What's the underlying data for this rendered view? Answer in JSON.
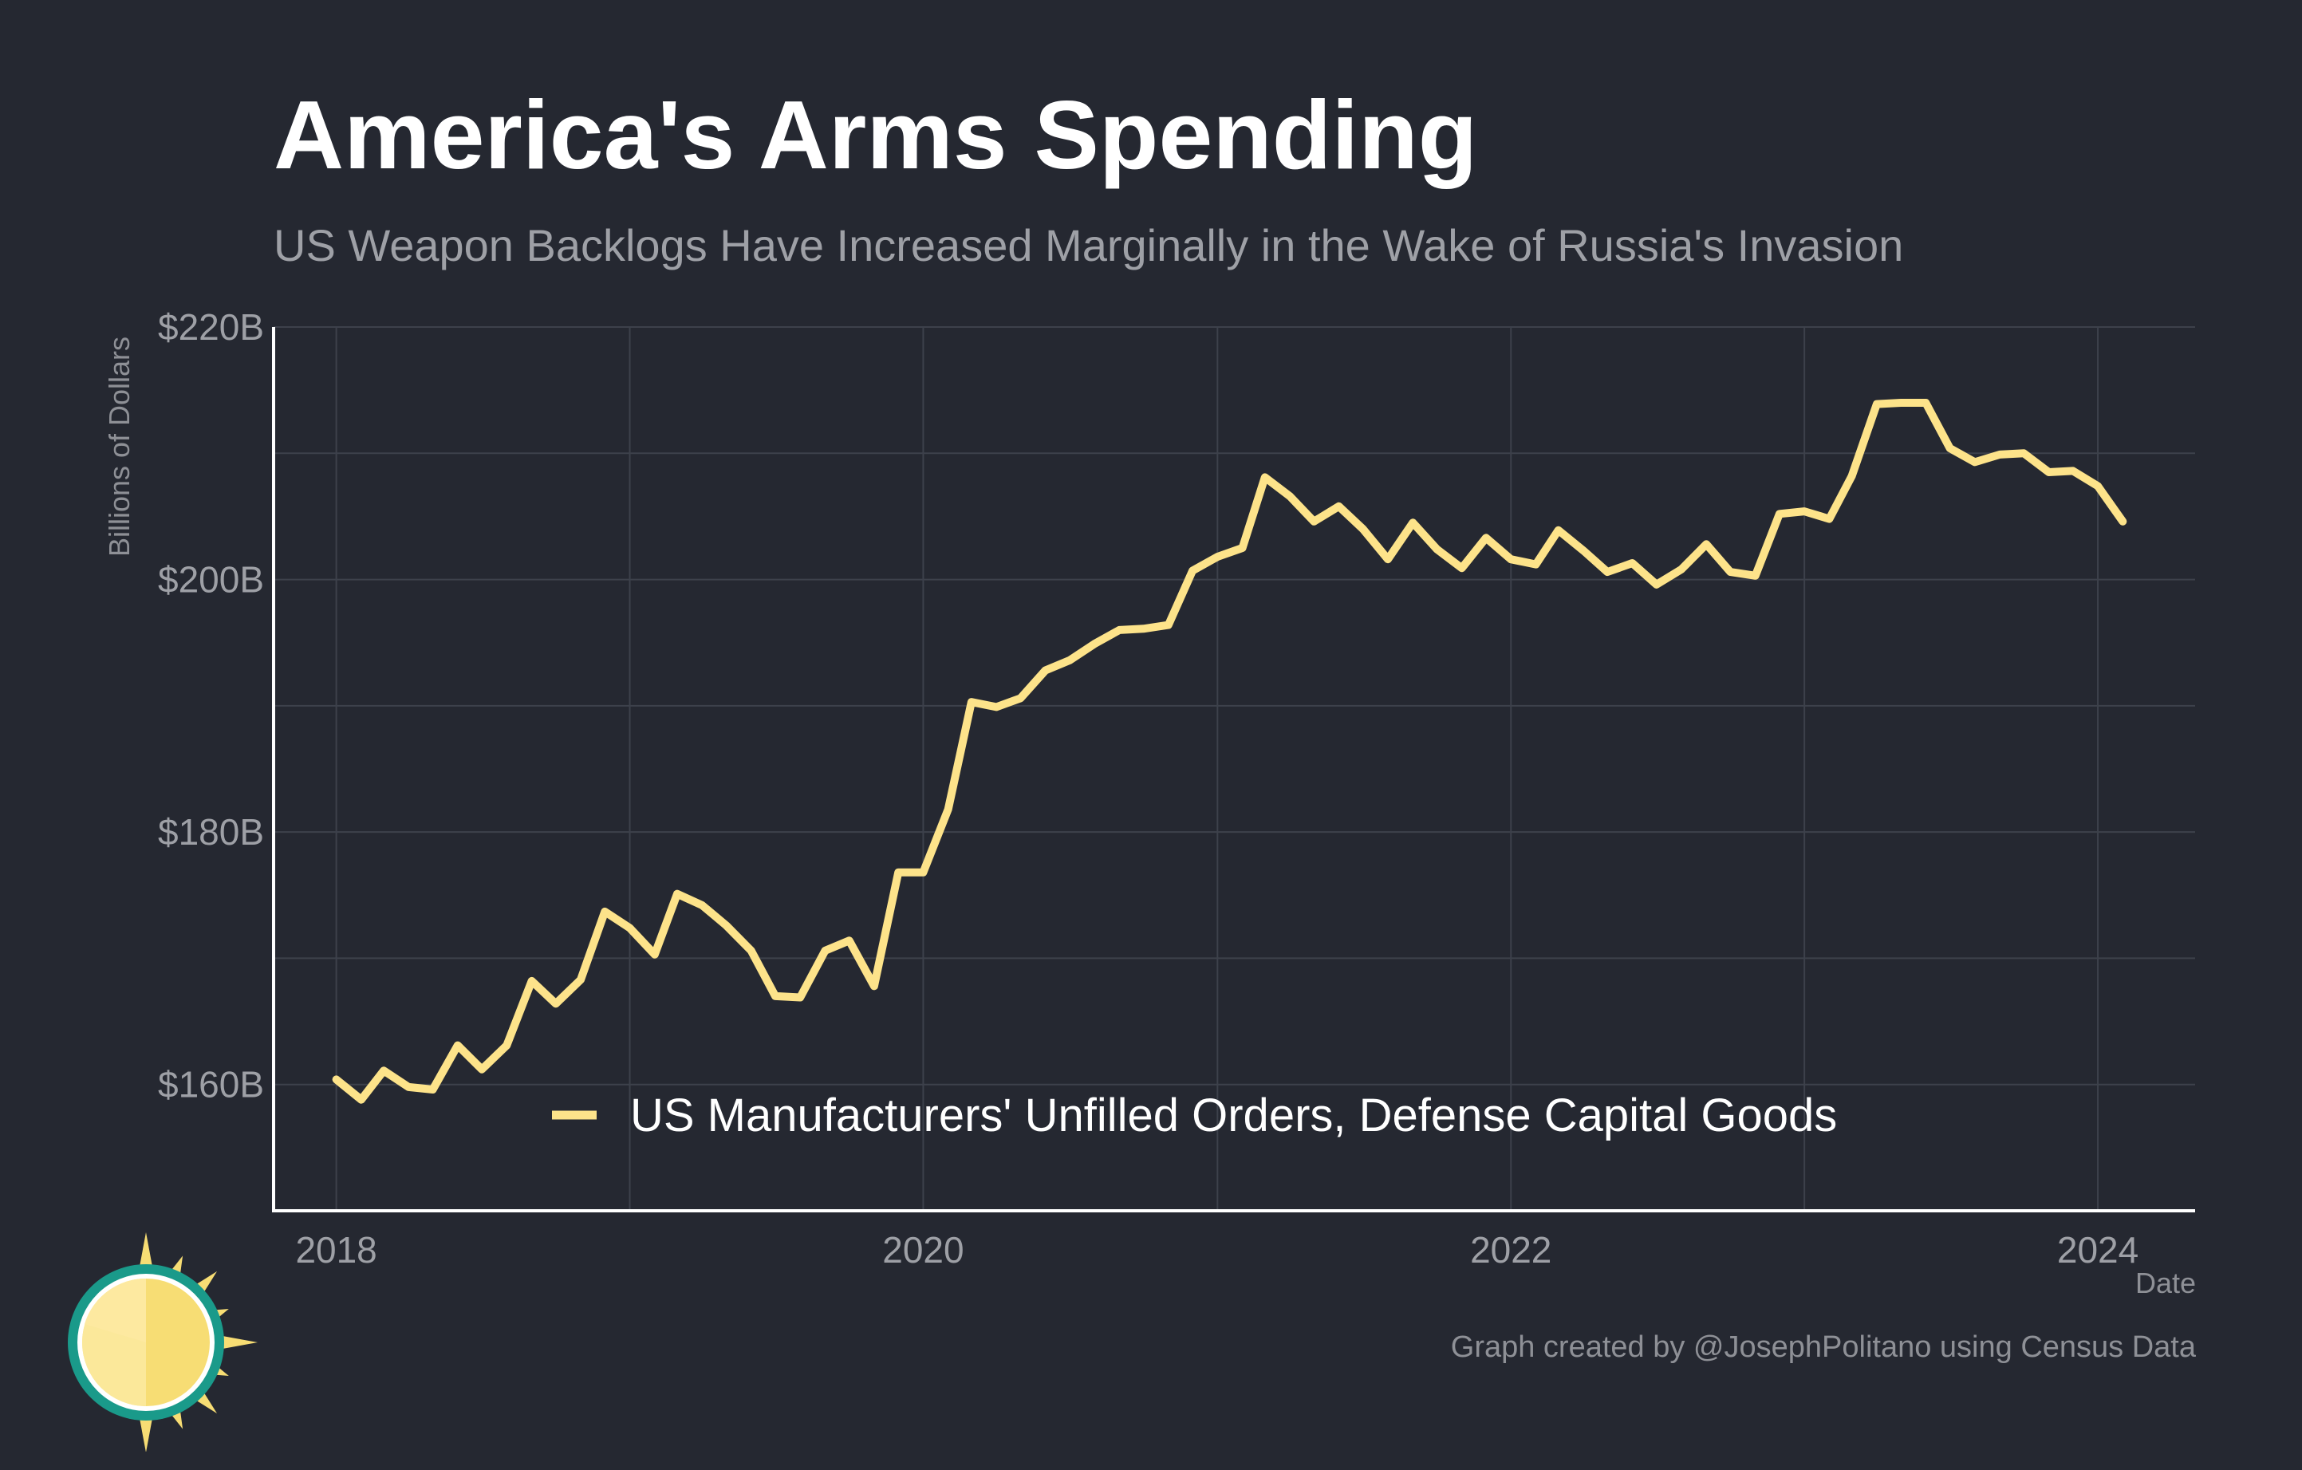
{
  "title": "America's Arms Spending",
  "subtitle": "US Weapon Backlogs Have Increased Marginally in the Wake of Russia's Invasion",
  "caption": "Graph created by @JosephPolitano using Census Data",
  "colors": {
    "background": "#252831",
    "line": "#fde38a",
    "grid": "#3d414b",
    "axis": "#ffffff",
    "tick_text": "#9ea0a6",
    "logo_teal": "#1a9a8a",
    "logo_sun": "#f7dd74"
  },
  "logo": {
    "icon": "sun-icon"
  },
  "chart_data": {
    "type": "line",
    "title": "America's Arms Spending",
    "subtitle": "US Weapon Backlogs Have Increased Marginally in the Wake of Russia's Invasion",
    "xlabel": "Date",
    "ylabel": "Billions of Dollars",
    "xlim": [
      "2017-10-15",
      "2024-05-01"
    ],
    "ylim": [
      150,
      220
    ],
    "x_ticks": [
      {
        "date": "2018-01-01",
        "label": "2018"
      },
      {
        "date": "2020-01-01",
        "label": "2020"
      },
      {
        "date": "2022-01-01",
        "label": "2022"
      },
      {
        "date": "2024-01-01",
        "label": "2024"
      }
    ],
    "y_ticks": [
      {
        "value": 160,
        "label": "$160B"
      },
      {
        "value": 180,
        "label": "$180B"
      },
      {
        "value": 200,
        "label": "$200B"
      },
      {
        "value": 220,
        "label": "$220B"
      }
    ],
    "minor_y_gridlines": [
      170,
      190,
      210
    ],
    "minor_x_gridlines": [
      "2019-01-01",
      "2021-01-01",
      "2023-01-01"
    ],
    "grid": true,
    "legend": {
      "position": "bottom-center, inside plot"
    },
    "series": [
      {
        "name": "US Manufacturers' Unfilled Orders, Defense Capital Goods",
        "x": [
          "2018-01",
          "2018-02",
          "2018-03",
          "2018-04",
          "2018-05",
          "2018-06",
          "2018-07",
          "2018-08",
          "2018-09",
          "2018-10",
          "2018-11",
          "2018-12",
          "2019-01",
          "2019-02",
          "2019-03",
          "2019-04",
          "2019-05",
          "2019-06",
          "2019-07",
          "2019-08",
          "2019-09",
          "2019-10",
          "2019-11",
          "2019-12",
          "2020-01",
          "2020-02",
          "2020-03",
          "2020-04",
          "2020-05",
          "2020-06",
          "2020-07",
          "2020-08",
          "2020-09",
          "2020-10",
          "2020-11",
          "2020-12",
          "2021-01",
          "2021-02",
          "2021-03",
          "2021-04",
          "2021-05",
          "2021-06",
          "2021-07",
          "2021-08",
          "2021-09",
          "2021-10",
          "2021-11",
          "2021-12",
          "2022-01",
          "2022-02",
          "2022-03",
          "2022-04",
          "2022-05",
          "2022-06",
          "2022-07",
          "2022-08",
          "2022-09",
          "2022-10",
          "2022-11",
          "2022-12",
          "2023-01",
          "2023-02",
          "2023-03",
          "2023-04",
          "2023-05",
          "2023-06",
          "2023-07",
          "2023-08",
          "2023-09",
          "2023-10",
          "2023-11",
          "2023-12",
          "2024-01",
          "2024-02"
        ],
        "values": [
          160.4,
          158.8,
          161.1,
          159.8,
          159.6,
          163.1,
          161.2,
          163.1,
          168.2,
          166.4,
          168.3,
          173.7,
          172.4,
          170.3,
          175.1,
          174.2,
          172.6,
          170.6,
          167.0,
          166.9,
          170.6,
          171.4,
          167.8,
          176.8,
          176.8,
          181.8,
          190.3,
          189.9,
          190.6,
          192.8,
          193.6,
          194.9,
          196.0,
          196.1,
          196.4,
          200.7,
          201.8,
          202.5,
          208.1,
          206.6,
          204.6,
          205.8,
          204.0,
          201.6,
          204.5,
          202.4,
          200.9,
          203.3,
          201.6,
          201.2,
          203.9,
          202.3,
          200.6,
          201.3,
          199.6,
          200.8,
          202.8,
          200.6,
          200.3,
          205.2,
          205.4,
          204.8,
          208.2,
          213.9,
          214.0,
          214.0,
          210.4,
          209.3,
          209.9,
          210.0,
          208.5,
          208.6,
          207.4,
          204.6
        ]
      }
    ]
  }
}
